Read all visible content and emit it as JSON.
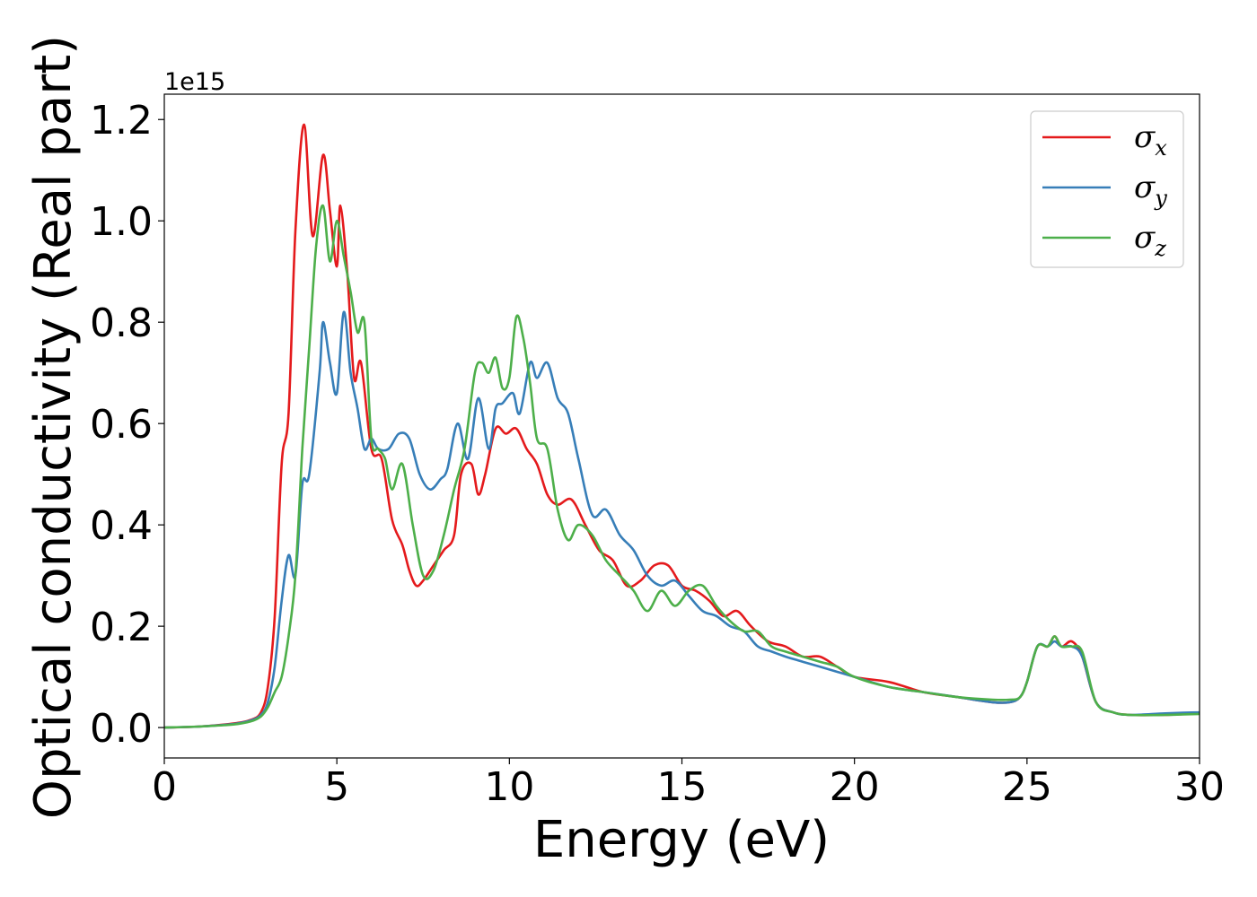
{
  "chart_data": {
    "type": "line",
    "xlabel": "Energy (eV)",
    "ylabel": "Optical conductivity (Real part)",
    "y_offset_label": "1e15",
    "xlim": [
      0,
      30
    ],
    "ylim": [
      -0.06,
      1.25
    ],
    "xticks": [
      0,
      5,
      10,
      15,
      20,
      25,
      30
    ],
    "xtick_labels": [
      "0",
      "5",
      "10",
      "15",
      "20",
      "25",
      "30"
    ],
    "yticks": [
      0.0,
      0.2,
      0.4,
      0.6,
      0.8,
      1.0,
      1.2
    ],
    "ytick_labels": [
      "0.0",
      "0.2",
      "0.4",
      "0.6",
      "0.8",
      "1.0",
      "1.2"
    ],
    "grid": false,
    "legend_position": "top-right",
    "series": [
      {
        "name": "σx",
        "symbol": "σ",
        "subscript": "x",
        "color": "#e41a1c",
        "x": [
          0,
          1,
          2,
          2.5,
          2.8,
          3.0,
          3.2,
          3.4,
          3.6,
          3.8,
          4.05,
          4.3,
          4.6,
          4.8,
          5.0,
          5.1,
          5.3,
          5.5,
          5.7,
          6.0,
          6.3,
          6.6,
          6.9,
          7.1,
          7.3,
          7.5,
          7.8,
          8.1,
          8.4,
          8.6,
          8.9,
          9.1,
          9.3,
          9.6,
          9.9,
          10.2,
          10.5,
          10.8,
          11.1,
          11.4,
          11.8,
          12.2,
          12.6,
          13.0,
          13.4,
          13.8,
          14.2,
          14.6,
          15.0,
          15.4,
          15.8,
          16.2,
          16.6,
          17.0,
          17.5,
          18.0,
          18.5,
          19.0,
          19.5,
          20.0,
          21.0,
          22.0,
          23.0,
          24.0,
          24.5,
          24.8,
          25.0,
          25.3,
          25.6,
          25.8,
          26.0,
          26.3,
          26.6,
          27.0,
          27.5,
          28.0,
          29.0,
          30.0
        ],
        "y": [
          0.0,
          0.002,
          0.008,
          0.015,
          0.03,
          0.08,
          0.22,
          0.52,
          0.62,
          0.98,
          1.19,
          0.97,
          1.13,
          1.02,
          0.91,
          1.03,
          0.9,
          0.69,
          0.72,
          0.55,
          0.53,
          0.41,
          0.36,
          0.31,
          0.28,
          0.29,
          0.32,
          0.35,
          0.38,
          0.5,
          0.52,
          0.46,
          0.5,
          0.59,
          0.58,
          0.59,
          0.55,
          0.52,
          0.46,
          0.44,
          0.45,
          0.4,
          0.35,
          0.33,
          0.28,
          0.29,
          0.32,
          0.32,
          0.28,
          0.27,
          0.25,
          0.22,
          0.23,
          0.2,
          0.17,
          0.16,
          0.14,
          0.14,
          0.12,
          0.1,
          0.09,
          0.07,
          0.06,
          0.05,
          0.05,
          0.06,
          0.09,
          0.16,
          0.16,
          0.18,
          0.16,
          0.17,
          0.14,
          0.05,
          0.03,
          0.025,
          0.025,
          0.028
        ]
      },
      {
        "name": "σy",
        "symbol": "σ",
        "subscript": "y",
        "color": "#377eb8",
        "x": [
          0,
          1,
          2,
          2.5,
          2.8,
          3.0,
          3.2,
          3.4,
          3.6,
          3.8,
          4.0,
          4.2,
          4.5,
          4.6,
          4.8,
          5.0,
          5.2,
          5.4,
          5.6,
          5.8,
          6.0,
          6.2,
          6.5,
          6.8,
          7.1,
          7.4,
          7.7,
          8.0,
          8.2,
          8.5,
          8.8,
          9.1,
          9.4,
          9.6,
          9.8,
          10.1,
          10.3,
          10.6,
          10.8,
          11.1,
          11.4,
          11.7,
          12.0,
          12.4,
          12.8,
          13.2,
          13.6,
          14.0,
          14.4,
          14.8,
          15.2,
          15.6,
          16.0,
          16.4,
          16.8,
          17.2,
          17.6,
          18.0,
          18.5,
          19.0,
          19.5,
          20.0,
          21.0,
          22.0,
          23.0,
          24.0,
          24.5,
          24.8,
          25.0,
          25.3,
          25.6,
          25.8,
          26.0,
          26.3,
          26.6,
          27.0,
          27.5,
          28.0,
          29.0,
          30.0
        ],
        "y": [
          0.0,
          0.002,
          0.007,
          0.014,
          0.025,
          0.05,
          0.12,
          0.25,
          0.34,
          0.3,
          0.48,
          0.5,
          0.7,
          0.8,
          0.72,
          0.66,
          0.82,
          0.7,
          0.63,
          0.55,
          0.57,
          0.55,
          0.55,
          0.58,
          0.57,
          0.5,
          0.47,
          0.49,
          0.51,
          0.6,
          0.53,
          0.65,
          0.55,
          0.63,
          0.64,
          0.66,
          0.62,
          0.72,
          0.69,
          0.72,
          0.65,
          0.62,
          0.53,
          0.42,
          0.43,
          0.38,
          0.35,
          0.3,
          0.28,
          0.29,
          0.26,
          0.23,
          0.22,
          0.2,
          0.19,
          0.16,
          0.15,
          0.14,
          0.13,
          0.12,
          0.11,
          0.1,
          0.08,
          0.07,
          0.06,
          0.05,
          0.05,
          0.06,
          0.09,
          0.16,
          0.16,
          0.17,
          0.16,
          0.16,
          0.14,
          0.05,
          0.03,
          0.025,
          0.028,
          0.03
        ]
      },
      {
        "name": "σz",
        "symbol": "σ",
        "subscript": "z",
        "color": "#4daf4a",
        "x": [
          0,
          1,
          2,
          2.5,
          2.8,
          3.0,
          3.2,
          3.4,
          3.6,
          3.8,
          4.0,
          4.2,
          4.4,
          4.6,
          4.8,
          5.0,
          5.2,
          5.4,
          5.6,
          5.8,
          6.0,
          6.2,
          6.4,
          6.6,
          6.9,
          7.2,
          7.5,
          7.8,
          8.1,
          8.4,
          8.7,
          9.0,
          9.2,
          9.4,
          9.6,
          9.8,
          10.0,
          10.2,
          10.4,
          10.6,
          10.8,
          11.1,
          11.4,
          11.7,
          12.0,
          12.4,
          12.8,
          13.2,
          13.6,
          14.0,
          14.4,
          14.8,
          15.2,
          15.6,
          16.0,
          16.4,
          16.8,
          17.2,
          17.6,
          18.0,
          18.5,
          19.0,
          19.5,
          20.0,
          21.0,
          22.0,
          23.0,
          24.0,
          24.5,
          24.8,
          25.0,
          25.3,
          25.6,
          25.8,
          26.0,
          26.3,
          26.6,
          27.0,
          27.5,
          28.0,
          29.0,
          30.0
        ],
        "y": [
          0.0,
          0.002,
          0.006,
          0.012,
          0.022,
          0.04,
          0.07,
          0.1,
          0.18,
          0.3,
          0.55,
          0.75,
          0.95,
          1.03,
          0.92,
          1.0,
          0.93,
          0.86,
          0.78,
          0.8,
          0.57,
          0.55,
          0.53,
          0.47,
          0.52,
          0.4,
          0.3,
          0.31,
          0.38,
          0.47,
          0.55,
          0.7,
          0.72,
          0.7,
          0.73,
          0.67,
          0.69,
          0.81,
          0.77,
          0.68,
          0.57,
          0.55,
          0.43,
          0.37,
          0.4,
          0.38,
          0.33,
          0.3,
          0.27,
          0.23,
          0.27,
          0.24,
          0.27,
          0.28,
          0.24,
          0.21,
          0.19,
          0.19,
          0.16,
          0.15,
          0.14,
          0.13,
          0.12,
          0.1,
          0.08,
          0.07,
          0.06,
          0.055,
          0.055,
          0.06,
          0.09,
          0.16,
          0.16,
          0.18,
          0.16,
          0.16,
          0.15,
          0.05,
          0.03,
          0.025,
          0.025,
          0.027
        ]
      }
    ]
  }
}
